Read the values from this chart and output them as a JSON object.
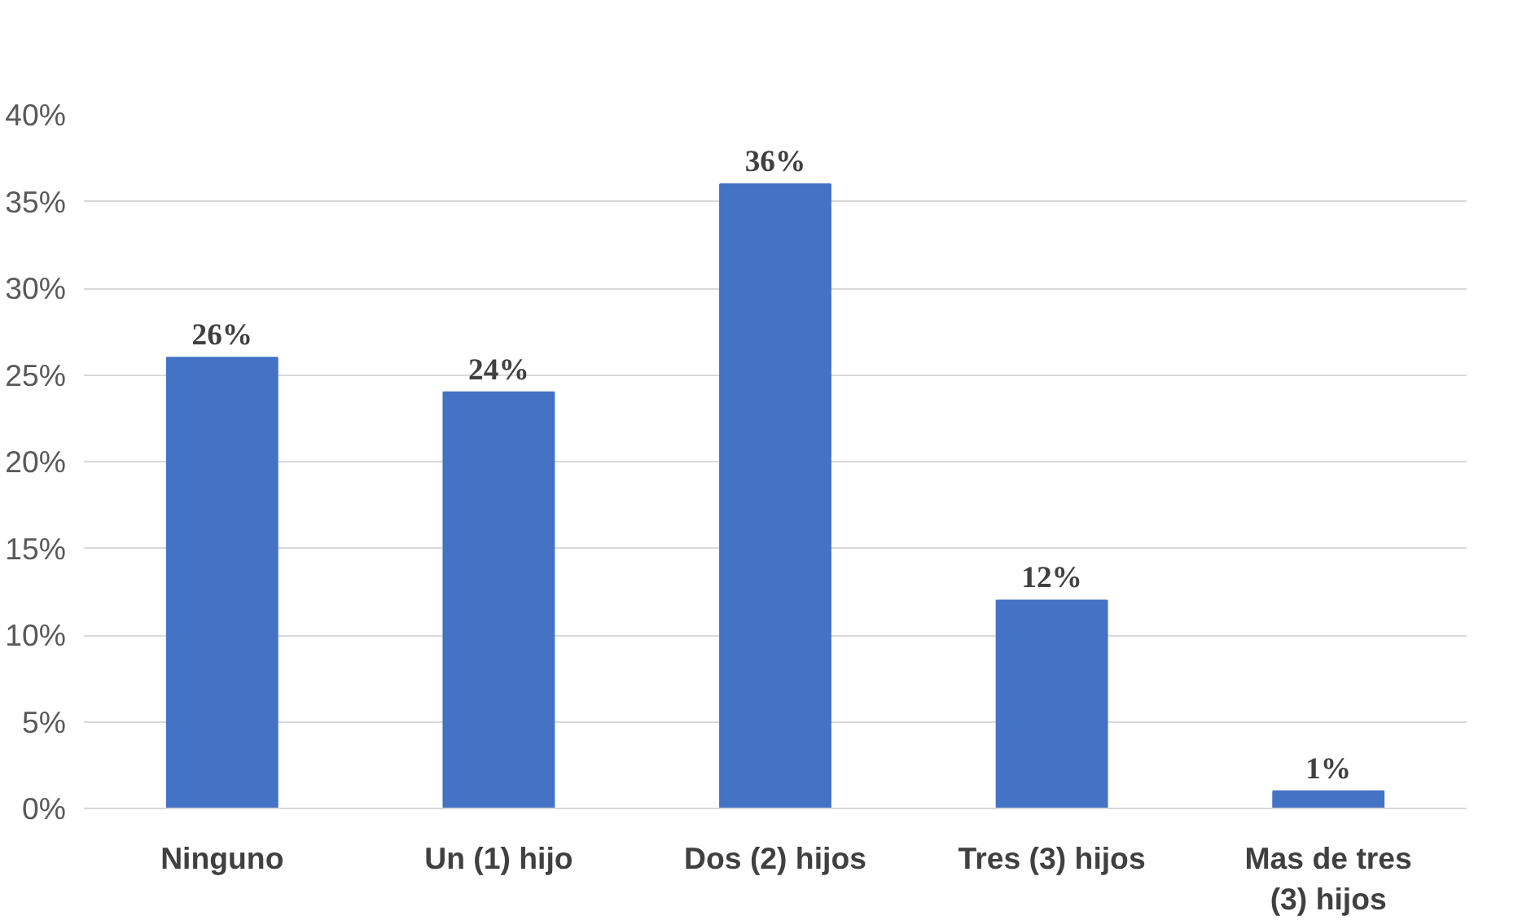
{
  "chart_data": {
    "type": "bar",
    "categories": [
      "Ninguno",
      "Un (1) hijo",
      "Dos (2) hijos",
      "Tres (3) hijos",
      "Mas de tres (3) hijos"
    ],
    "values": [
      26,
      24,
      36,
      12,
      1
    ],
    "value_labels": [
      "26%",
      "24%",
      "36%",
      "12%",
      "1%"
    ],
    "color": "#4472c4",
    "ylim": [
      0,
      40
    ],
    "yticks": [
      {
        "value": 0,
        "label": "0%"
      },
      {
        "value": 5,
        "label": "5%"
      },
      {
        "value": 10,
        "label": "10%"
      },
      {
        "value": 15,
        "label": "15%"
      },
      {
        "value": 20,
        "label": "20%"
      },
      {
        "value": 25,
        "label": "25%"
      },
      {
        "value": 30,
        "label": "30%"
      },
      {
        "value": 35,
        "label": "35%"
      },
      {
        "value": 40,
        "label": "40%"
      }
    ],
    "grid": "y"
  }
}
